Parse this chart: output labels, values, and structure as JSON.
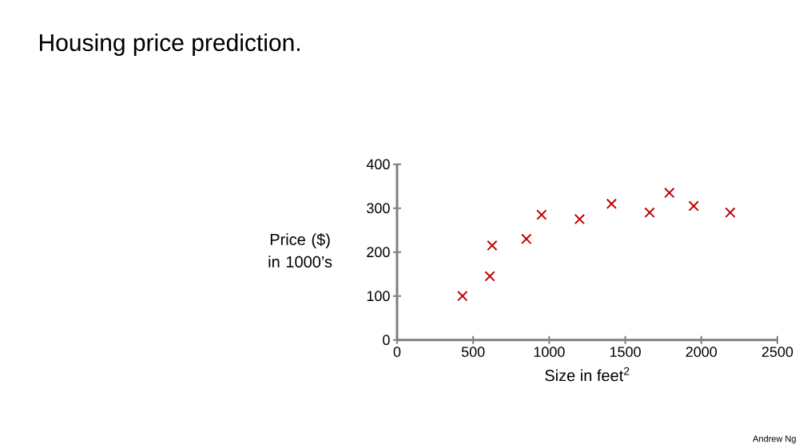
{
  "chart_data": {
    "type": "scatter",
    "title": "Housing price prediction.",
    "xlabel": "Size in feet$^{2}$",
    "ylabel": "Price ($) in 1000’s",
    "x": [
      430,
      610,
      625,
      850,
      950,
      1200,
      1410,
      1660,
      1790,
      1950,
      2190
    ],
    "values": [
      100,
      145,
      215,
      230,
      285,
      275,
      310,
      290,
      335,
      305,
      290
    ],
    "color": "#c00000",
    "marker": "cross",
    "xlim": [
      0,
      2500
    ],
    "ylim": [
      0,
      400
    ],
    "xticks": [
      0,
      500,
      1000,
      1500,
      2000,
      2500
    ],
    "yticks": [
      0,
      100,
      200,
      300,
      400
    ],
    "annotations": [
      "Andrew Ng"
    ]
  }
}
